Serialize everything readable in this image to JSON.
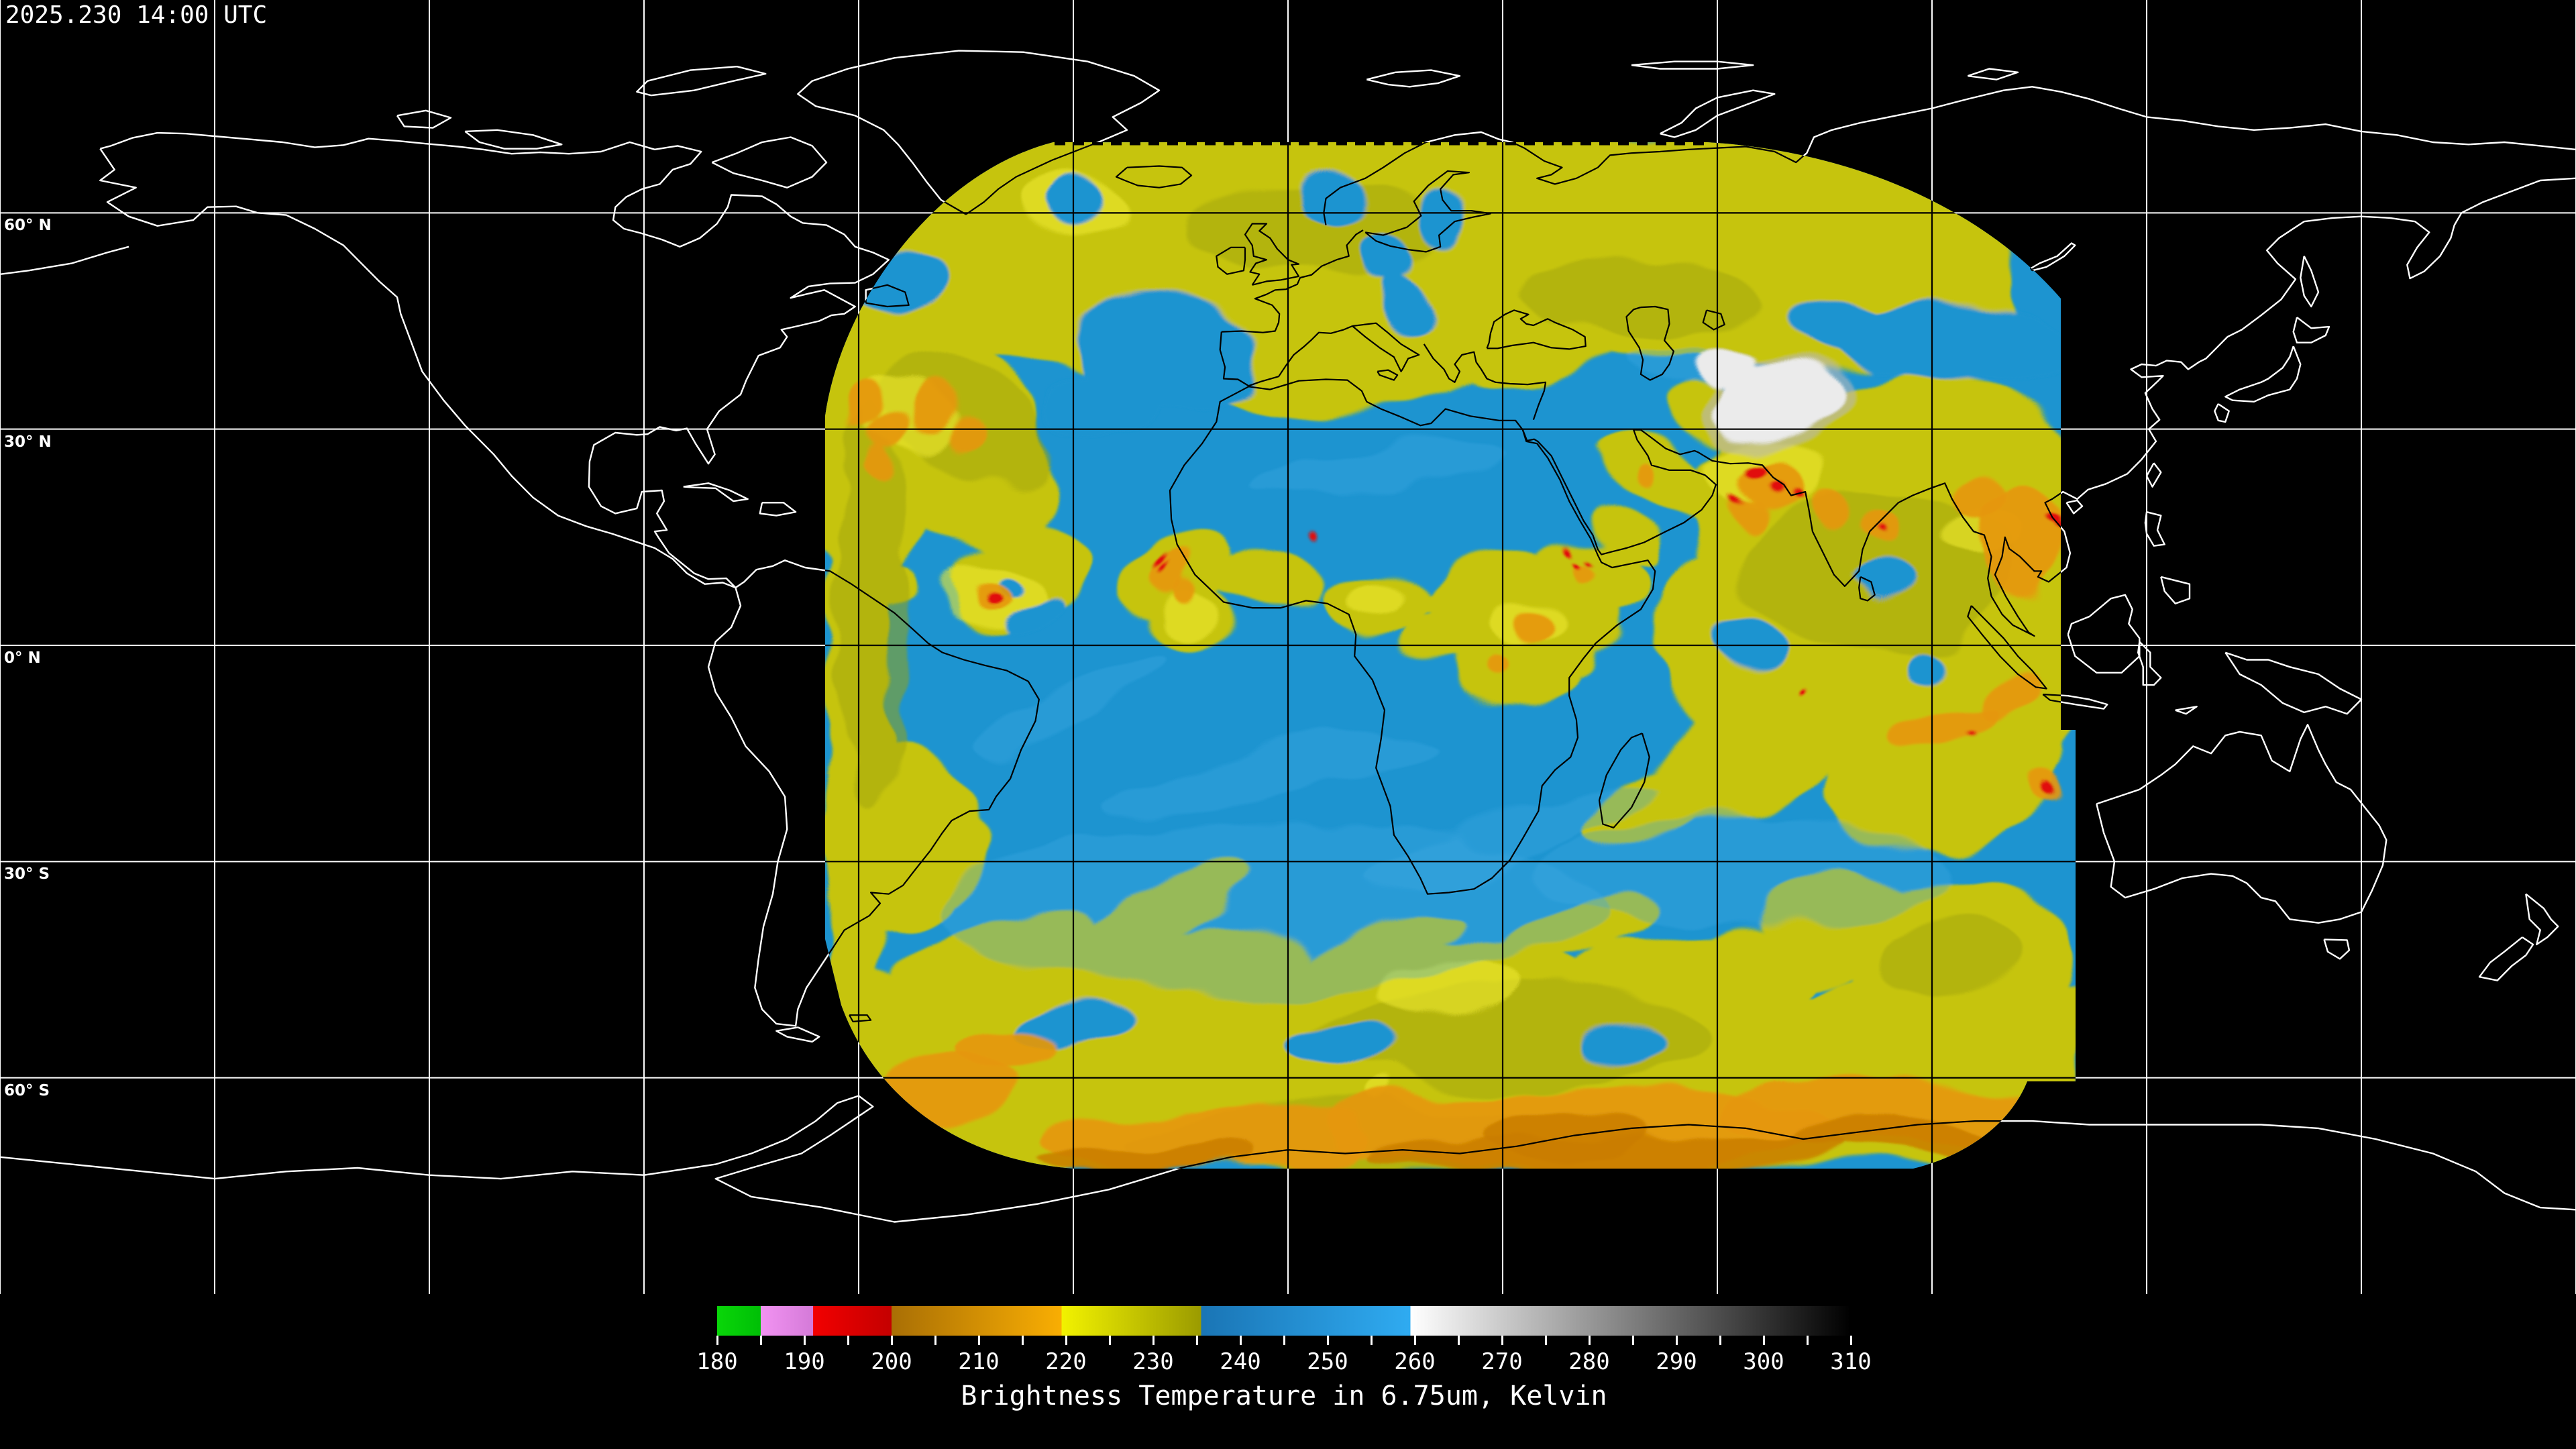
{
  "header": {
    "timestamp": "2025.230 14:00 UTC"
  },
  "map": {
    "background_color": "#000000",
    "projection": "equirectangular",
    "graticule": {
      "lon_step_deg": 30,
      "lat_step_deg": 30,
      "color_outside_swath": "#ffffff",
      "color_inside_swath": "#000000"
    },
    "coastline": {
      "color_outside_swath": "#ffffff",
      "color_inside_swath": "#000000"
    },
    "latitude_labels": [
      {
        "label": "60° N",
        "lat": 60
      },
      {
        "label": "30° N",
        "lat": 30
      },
      {
        "label": "0° N",
        "lat": 0
      },
      {
        "label": "30° S",
        "lat": -30
      },
      {
        "label": "60° S",
        "lat": -60
      }
    ],
    "swath": {
      "description": "geostationary water-vapor brightness temperature swath",
      "palette": {
        "base_blue": "#1d94d0",
        "light_blue": "#3fa9e1",
        "yellow": "#c6c40f",
        "olive": "#9fa309",
        "bright_yellow": "#eeea2e",
        "orange": "#e59708",
        "deep_orange": "#c97c05",
        "red": "#e11010",
        "white_cloud": "#ebebeb",
        "gray_fringe": "#b9b9b9"
      }
    }
  },
  "colorbar": {
    "title": "Brightness Temperature in 6.75um, Kelvin",
    "min": 180,
    "max": 310,
    "minor_tick_step": 5,
    "major_tick_labels": [
      "180",
      "190",
      "200",
      "210",
      "220",
      "230",
      "240",
      "250",
      "260",
      "270",
      "280",
      "290",
      "300",
      "310"
    ],
    "segments": [
      {
        "name": "green",
        "from": 180,
        "to": 185,
        "color_start": "#09d609",
        "color_end": "#00bf06"
      },
      {
        "name": "violet",
        "from": 185,
        "to": 191,
        "color_start": "#f293f2",
        "color_end": "#d47ad8"
      },
      {
        "name": "red",
        "from": 191,
        "to": 200,
        "color_start": "#f20000",
        "color_end": "#c40000"
      },
      {
        "name": "orange",
        "from": 200,
        "to": 219.5,
        "color_start": "#a96f05",
        "color_end": "#f9ae03"
      },
      {
        "name": "yellow",
        "from": 219.5,
        "to": 235.5,
        "color_start": "#f2f200",
        "color_end": "#9b9b00"
      },
      {
        "name": "blue",
        "from": 235.5,
        "to": 259.5,
        "color_start": "#1a75b5",
        "color_end": "#2fabf1"
      },
      {
        "name": "grayscale",
        "from": 259.5,
        "to": 310,
        "color_start": "#ffffff",
        "color_end": "#000000"
      }
    ]
  }
}
